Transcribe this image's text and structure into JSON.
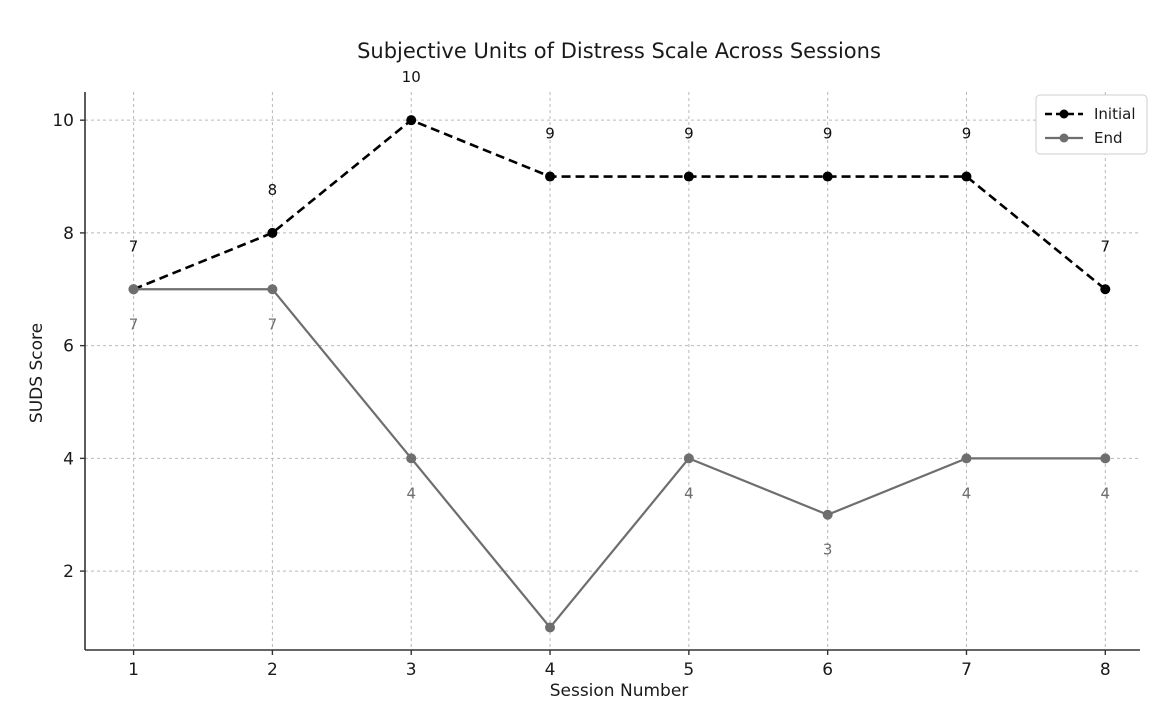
{
  "chart_data": {
    "type": "line",
    "title": "Subjective Units of Distress Scale Across Sessions",
    "xlabel": "Session Number",
    "ylabel": "SUDS Score",
    "x": [
      1,
      2,
      3,
      4,
      5,
      6,
      7,
      8
    ],
    "xticks": [
      "1",
      "2",
      "3",
      "4",
      "5",
      "6",
      "7",
      "8"
    ],
    "yticks": [
      "2",
      "4",
      "6",
      "8",
      "10"
    ],
    "ytick_values": [
      2,
      4,
      6,
      8,
      10
    ],
    "xlim": [
      0.65,
      8.25
    ],
    "ylim": [
      0.6,
      10.5
    ],
    "grid": true,
    "legend_position": "top-right",
    "series": [
      {
        "name": "Initial",
        "values": [
          7,
          8,
          10,
          9,
          9,
          9,
          9,
          7
        ],
        "labels": [
          "7",
          "8",
          "10",
          "9",
          "9",
          "9",
          "9",
          "7"
        ],
        "color": "#000000",
        "line_style": "dashed",
        "marker": "circle"
      },
      {
        "name": "End",
        "values": [
          7,
          7,
          4,
          1,
          4,
          3,
          4,
          4
        ],
        "labels": [
          "7",
          "7",
          "4",
          "",
          "4",
          "3",
          "4",
          "4"
        ],
        "color": "#6e6e6e",
        "line_style": "solid",
        "marker": "circle"
      }
    ]
  }
}
